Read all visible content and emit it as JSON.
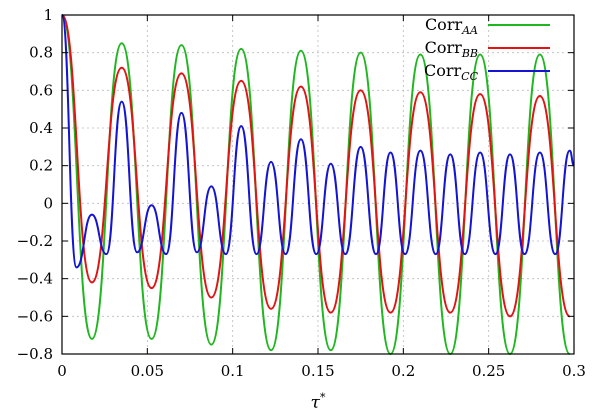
{
  "chart_data": {
    "type": "line",
    "xlabel": "τ",
    "xlabel_sup": "*",
    "ylabel": "",
    "title": "",
    "xlim": [
      0,
      0.3
    ],
    "ylim": [
      -0.8,
      1.0
    ],
    "xticks": [
      0,
      0.05,
      0.1,
      0.15,
      0.2,
      0.25,
      0.3
    ],
    "xtick_labels": [
      "0",
      "0.05",
      "0.1",
      "0.15",
      "0.2",
      "0.25",
      "0.3"
    ],
    "yticks": [
      -0.8,
      -0.6,
      -0.4,
      -0.2,
      0,
      0.2,
      0.4,
      0.6,
      0.8,
      1.0
    ],
    "ytick_labels": [
      "−0.8",
      "−0.6",
      "−0.4",
      "−0.2",
      "0",
      "0.2",
      "0.4",
      "0.6",
      "0.8",
      "1"
    ],
    "grid": true,
    "legend_position": "top-right",
    "series": [
      {
        "name": "Corr",
        "sub": "AA",
        "color": "#1fb71f",
        "x": [
          0,
          0.0175,
          0.035,
          0.0525,
          0.07,
          0.0875,
          0.105,
          0.1225,
          0.14,
          0.1575,
          0.175,
          0.1925,
          0.21,
          0.2275,
          0.245,
          0.2625,
          0.28,
          0.2975
        ],
        "y": [
          1.0,
          -0.72,
          0.85,
          -0.72,
          0.84,
          -0.75,
          0.82,
          -0.78,
          0.81,
          -0.78,
          0.8,
          -0.8,
          0.79,
          -0.8,
          0.79,
          -0.8,
          0.79,
          -0.8
        ]
      },
      {
        "name": "Corr",
        "sub": "BB",
        "color": "#e11414",
        "x": [
          0,
          0.0175,
          0.035,
          0.0525,
          0.07,
          0.0875,
          0.105,
          0.1225,
          0.14,
          0.1575,
          0.175,
          0.1925,
          0.21,
          0.2275,
          0.245,
          0.2625,
          0.28,
          0.2975
        ],
        "y": [
          1.0,
          -0.42,
          0.72,
          -0.45,
          0.69,
          -0.5,
          0.65,
          -0.56,
          0.62,
          -0.58,
          0.6,
          -0.58,
          0.59,
          -0.58,
          0.58,
          -0.6,
          0.57,
          -0.6
        ]
      },
      {
        "name": "Corr",
        "sub": "CC",
        "color": "#1414d2",
        "x": [
          0,
          0.0085,
          0.0175,
          0.026,
          0.035,
          0.044,
          0.0525,
          0.061,
          0.07,
          0.079,
          0.0875,
          0.096,
          0.105,
          0.114,
          0.1225,
          0.131,
          0.14,
          0.149,
          0.1575,
          0.166,
          0.175,
          0.184,
          0.1925,
          0.201,
          0.21,
          0.219,
          0.2275,
          0.236,
          0.245,
          0.254,
          0.2625,
          0.271,
          0.28,
          0.289,
          0.2975,
          0.3
        ],
        "y": [
          1.0,
          -0.34,
          -0.06,
          -0.27,
          0.54,
          -0.26,
          -0.01,
          -0.27,
          0.48,
          -0.26,
          0.09,
          -0.27,
          0.41,
          -0.27,
          0.22,
          -0.27,
          0.34,
          -0.27,
          0.21,
          -0.27,
          0.3,
          -0.27,
          0.27,
          -0.27,
          0.28,
          -0.27,
          0.26,
          -0.27,
          0.27,
          -0.27,
          0.26,
          -0.27,
          0.27,
          -0.27,
          0.28,
          0.2
        ]
      }
    ]
  }
}
